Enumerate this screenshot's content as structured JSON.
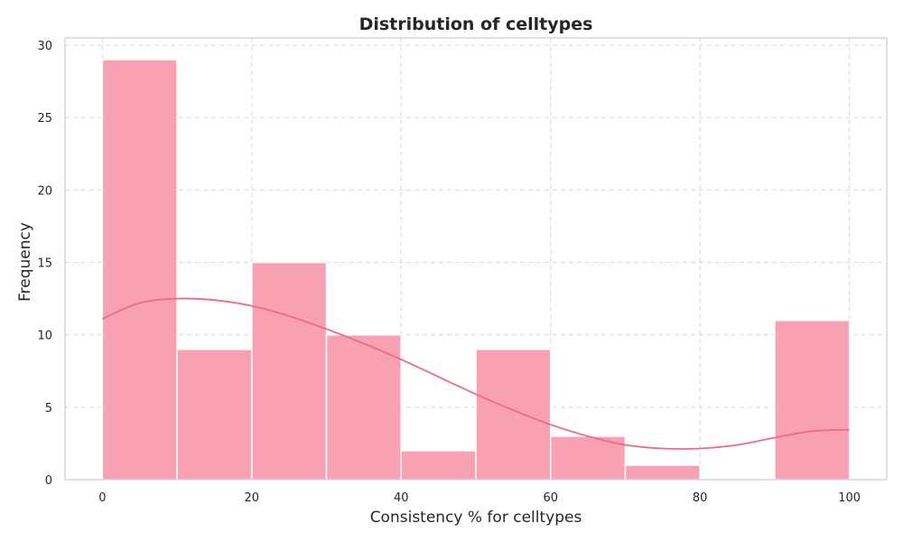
{
  "chart_data": {
    "type": "bar",
    "title": "Distribution of celltypes",
    "xlabel": "Consistency % for celltypes",
    "ylabel": "Frequency",
    "xlim": [
      -5,
      105
    ],
    "ylim": [
      0,
      30.5
    ],
    "bins": [
      {
        "start": 0,
        "end": 10,
        "count": 29
      },
      {
        "start": 10,
        "end": 20,
        "count": 9
      },
      {
        "start": 20,
        "end": 30,
        "count": 15
      },
      {
        "start": 30,
        "end": 40,
        "count": 10
      },
      {
        "start": 40,
        "end": 50,
        "count": 2
      },
      {
        "start": 50,
        "end": 60,
        "count": 9
      },
      {
        "start": 60,
        "end": 70,
        "count": 3
      },
      {
        "start": 70,
        "end": 80,
        "count": 1
      },
      {
        "start": 80,
        "end": 90,
        "count": 0
      },
      {
        "start": 90,
        "end": 100,
        "count": 11
      }
    ],
    "kde": {
      "x": [
        0,
        5,
        10,
        15,
        20,
        25,
        30,
        35,
        40,
        45,
        50,
        55,
        60,
        65,
        70,
        75,
        80,
        85,
        90,
        95,
        100
      ],
      "y": [
        11.1,
        12.2,
        12.5,
        12.4,
        12.0,
        11.3,
        10.4,
        9.4,
        8.3,
        7.1,
        5.9,
        4.8,
        3.8,
        3.0,
        2.4,
        2.15,
        2.15,
        2.4,
        2.9,
        3.35,
        3.45
      ]
    },
    "xticks": [
      0,
      20,
      40,
      60,
      80,
      100
    ],
    "yticks": [
      0,
      5,
      10,
      15,
      20,
      25,
      30
    ],
    "grid": true,
    "colors": {
      "bar": "#f7a1b2",
      "bar_edge": "#ffffff",
      "kde": "#ee6b83",
      "grid": "#d9d9d9",
      "spine": "#cccccc"
    }
  }
}
